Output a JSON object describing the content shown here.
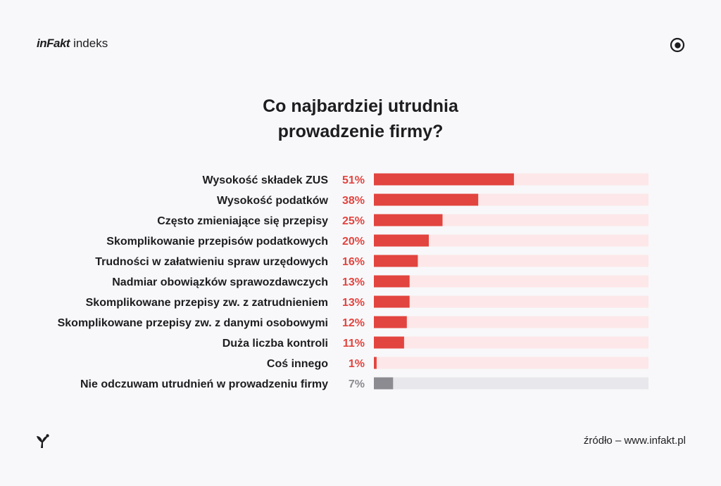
{
  "brand": {
    "logo": "inFakt",
    "product": "indeks"
  },
  "icons": {
    "top_right": "eye-icon",
    "footer": "infakt-bird-icon"
  },
  "title_lines": [
    "Co najbardziej utrudnia",
    "prowadzenie firmy?"
  ],
  "source": "źródło – www.infakt.pl",
  "colors": {
    "bar": "#e2443f",
    "bar_track": "#fde7e8",
    "bar_muted": "#8b8b91",
    "track_muted": "#e8e8ec",
    "value_text": "#e2443f",
    "value_text_muted": "#8b8b91",
    "label_text": "#1d1d1f"
  },
  "chart_data": {
    "type": "bar",
    "orientation": "horizontal",
    "title": "Co najbardziej utrudnia prowadzenie firmy?",
    "categories": [
      "Wysokość składek ZUS",
      "Wysokość podatków",
      "Często zmieniające się przepisy",
      "Skomplikowanie przepisów podatkowych",
      "Trudności w załatwieniu spraw urzędowych",
      "Nadmiar obowiązków sprawozdawczych",
      "Skomplikowane przepisy zw. z zatrudnieniem",
      "Skomplikowane przepisy zw. z danymi osobowymi",
      "Duża liczba kontroli",
      "Coś innego",
      "Nie odczuwam utrudnień w prowadzeniu firmy"
    ],
    "values": [
      51,
      38,
      25,
      20,
      16,
      13,
      13,
      12,
      11,
      1,
      7
    ],
    "value_labels": [
      "51%",
      "38%",
      "25%",
      "20%",
      "16%",
      "13%",
      "13%",
      "12%",
      "11%",
      "1%",
      "7%"
    ],
    "muted": [
      false,
      false,
      false,
      false,
      false,
      false,
      false,
      false,
      false,
      false,
      true
    ],
    "xlim": [
      0,
      100
    ],
    "unit": "%",
    "grid": false,
    "legend": "none"
  }
}
